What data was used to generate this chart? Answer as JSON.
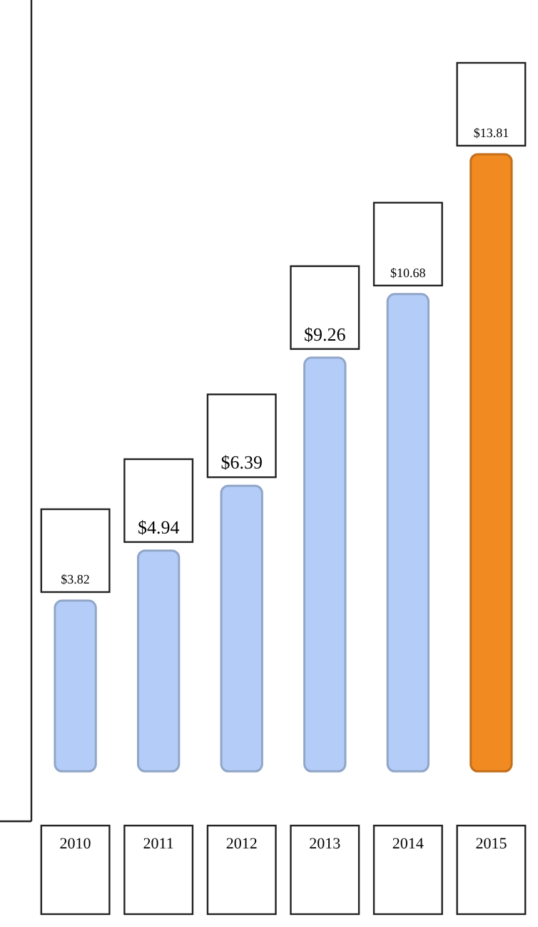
{
  "chart_data": {
    "type": "bar",
    "categories": [
      "2010",
      "2011",
      "2012",
      "2013",
      "2014",
      "2015"
    ],
    "values": [
      3.82,
      4.94,
      6.39,
      9.26,
      10.68,
      13.81
    ],
    "value_labels": [
      "$3.82",
      "$4.94",
      "$6.39",
      "$9.26",
      "$10.68",
      "$13.81"
    ],
    "colors": [
      "#b4cdf8",
      "#b4cdf8",
      "#b4cdf8",
      "#b4cdf8",
      "#b4cdf8",
      "#f28a22"
    ],
    "tick_labels": "x"
  }
}
